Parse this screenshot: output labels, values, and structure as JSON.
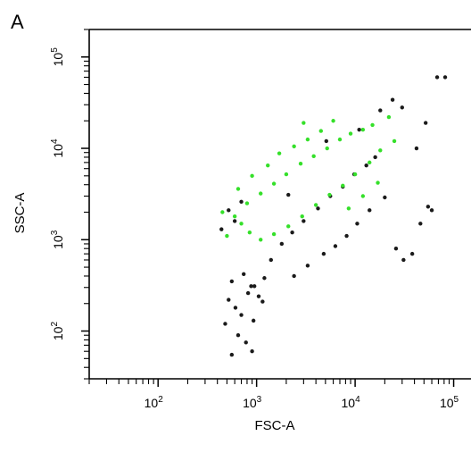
{
  "panel_label": "A",
  "chart_data": {
    "type": "scatter",
    "title": "",
    "xlabel": "FSC-A",
    "ylabel": "SSC-A",
    "x_scale": "log",
    "y_scale": "log",
    "xlim": [
      20,
      150000
    ],
    "ylim": [
      30,
      200000
    ],
    "x_ticks": [
      {
        "value": 100,
        "mantissa": "10",
        "exp": "2"
      },
      {
        "value": 1000,
        "mantissa": "10",
        "exp": "3"
      },
      {
        "value": 10000,
        "mantissa": "10",
        "exp": "4"
      },
      {
        "value": 100000,
        "mantissa": "10",
        "exp": "5"
      }
    ],
    "y_ticks": [
      {
        "value": 100,
        "mantissa": "10",
        "exp": "2"
      },
      {
        "value": 1000,
        "mantissa": "10",
        "exp": "3"
      },
      {
        "value": 10000,
        "mantissa": "10",
        "exp": "4"
      },
      {
        "value": 100000,
        "mantissa": "10",
        "exp": "5"
      }
    ],
    "grid": false,
    "legend": "none",
    "series": [
      {
        "color": "#1a1a1a",
        "marker_size": 2.2,
        "points": [
          [
            520,
            220
          ],
          [
            610,
            180
          ],
          [
            700,
            150
          ],
          [
            820,
            260
          ],
          [
            930,
            130
          ],
          [
            560,
            350
          ],
          [
            740,
            420
          ],
          [
            880,
            310
          ],
          [
            1050,
            240
          ],
          [
            1200,
            380
          ],
          [
            480,
            120
          ],
          [
            650,
            90
          ],
          [
            780,
            75
          ],
          [
            900,
            60
          ],
          [
            560,
            55
          ],
          [
            1400,
            600
          ],
          [
            1800,
            900
          ],
          [
            2300,
            1200
          ],
          [
            3000,
            1600
          ],
          [
            4200,
            2200
          ],
          [
            5600,
            3000
          ],
          [
            7500,
            3800
          ],
          [
            9800,
            5200
          ],
          [
            13000,
            6500
          ],
          [
            16000,
            8000
          ],
          [
            2400,
            400
          ],
          [
            3300,
            520
          ],
          [
            4800,
            700
          ],
          [
            6300,
            850
          ],
          [
            8200,
            1100
          ],
          [
            10500,
            1500
          ],
          [
            14000,
            2100
          ],
          [
            20000,
            2900
          ],
          [
            26000,
            800
          ],
          [
            31000,
            600
          ],
          [
            38000,
            700
          ],
          [
            46000,
            1500
          ],
          [
            55000,
            2300
          ],
          [
            60000,
            2100
          ],
          [
            42000,
            10000
          ],
          [
            52000,
            19000
          ],
          [
            30000,
            28000
          ],
          [
            24000,
            34000
          ],
          [
            68000,
            60000
          ],
          [
            82000,
            60000
          ],
          [
            2100,
            3100
          ],
          [
            5100,
            12000
          ],
          [
            11000,
            16000
          ],
          [
            18000,
            26000
          ],
          [
            600,
            1600
          ],
          [
            440,
            1300
          ],
          [
            520,
            2100
          ],
          [
            700,
            2600
          ],
          [
            950,
            310
          ],
          [
            1150,
            210
          ]
        ]
      },
      {
        "color": "#35e02a",
        "marker_size": 2.2,
        "points": [
          [
            600,
            1800
          ],
          [
            800,
            2500
          ],
          [
            1100,
            3200
          ],
          [
            1500,
            4100
          ],
          [
            2000,
            5200
          ],
          [
            2800,
            6800
          ],
          [
            3800,
            8200
          ],
          [
            5200,
            10000
          ],
          [
            7000,
            12500
          ],
          [
            9000,
            14500
          ],
          [
            12000,
            16000
          ],
          [
            15000,
            18000
          ],
          [
            18000,
            9500
          ],
          [
            14000,
            7000
          ],
          [
            10000,
            5200
          ],
          [
            7500,
            3900
          ],
          [
            5500,
            3100
          ],
          [
            4000,
            2400
          ],
          [
            2900,
            1800
          ],
          [
            2100,
            1400
          ],
          [
            1500,
            1150
          ],
          [
            1100,
            1000
          ],
          [
            850,
            1200
          ],
          [
            700,
            1500
          ],
          [
            500,
            1100
          ],
          [
            450,
            2000
          ],
          [
            650,
            3600
          ],
          [
            900,
            5000
          ],
          [
            1300,
            6500
          ],
          [
            1700,
            8800
          ],
          [
            2400,
            10500
          ],
          [
            3300,
            12500
          ],
          [
            4500,
            15500
          ],
          [
            6000,
            20000
          ],
          [
            3000,
            19000
          ],
          [
            22000,
            22000
          ],
          [
            25000,
            12000
          ],
          [
            17000,
            4200
          ],
          [
            12000,
            3000
          ],
          [
            8600,
            2200
          ]
        ]
      }
    ]
  }
}
